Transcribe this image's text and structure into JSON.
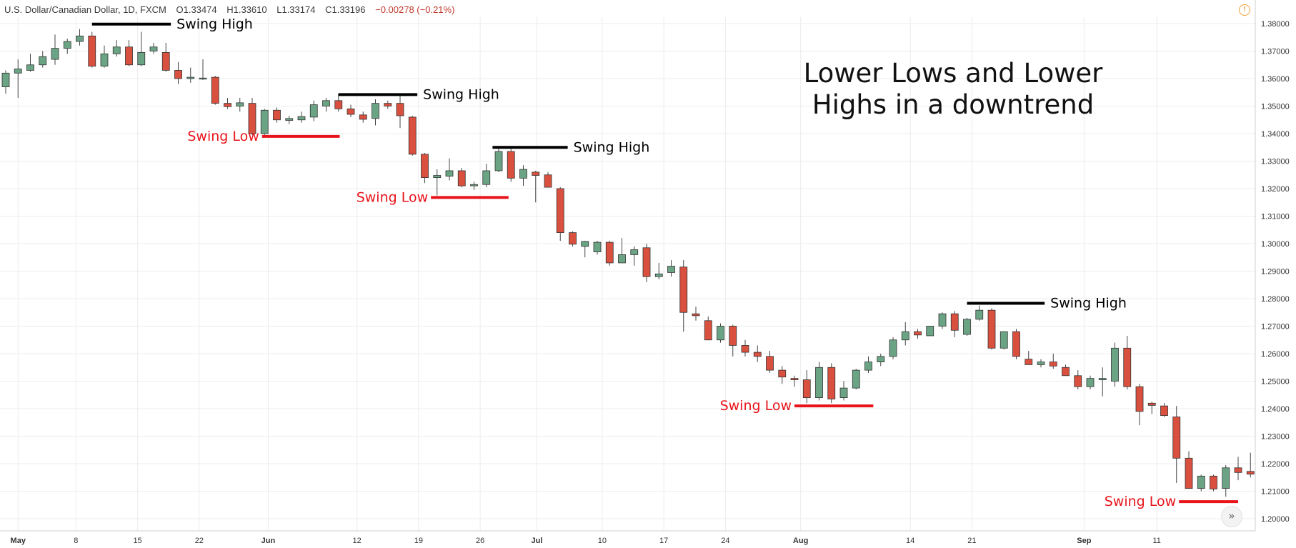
{
  "header": {
    "symbol": "U.S. Dollar/Canadian Dollar, 1D, FXCM",
    "open": "O1.33474",
    "high": "H1.33610",
    "low": "L1.33174",
    "close": "C1.33196",
    "change": "−0.00278 (−0.21%)"
  },
  "colors": {
    "up": "#6aa484",
    "down": "#d9503f",
    "swing_high": "#000000",
    "swing_low": "#e8141c",
    "grid": "#ececec"
  },
  "icons": {
    "warning": "exclamation-circle-icon",
    "scroll": "double-chevron-right-icon"
  },
  "chart_data": {
    "type": "candlestick",
    "title": "Lower Lows and Lower Highs in a downtrend",
    "title_lines": [
      "Lower Lows and Lower",
      "Highs in a downtrend"
    ],
    "ylim": [
      1.1965,
      1.3865
    ],
    "y_ticks": [
      "1.38000",
      "1.37000",
      "1.36000",
      "1.35000",
      "1.34000",
      "1.33000",
      "1.32000",
      "1.31000",
      "1.30000",
      "1.29000",
      "1.28000",
      "1.27000",
      "1.26000",
      "1.25000",
      "1.24000",
      "1.23000",
      "1.22000",
      "1.21000",
      "1.20000"
    ],
    "x_ticks": [
      {
        "label": "May",
        "i": 1,
        "bold": true
      },
      {
        "label": "8",
        "i": 5.7
      },
      {
        "label": "15",
        "i": 10.7
      },
      {
        "label": "22",
        "i": 15.7
      },
      {
        "label": "Jun",
        "i": 21.3,
        "bold": true
      },
      {
        "label": "12",
        "i": 28.5
      },
      {
        "label": "19",
        "i": 33.5
      },
      {
        "label": "26",
        "i": 38.5
      },
      {
        "label": "Jul",
        "i": 43.1,
        "bold": true
      },
      {
        "label": "10",
        "i": 48.4
      },
      {
        "label": "17",
        "i": 53.4
      },
      {
        "label": "24",
        "i": 58.4
      },
      {
        "label": "Aug",
        "i": 64.5,
        "bold": true
      },
      {
        "label": "14",
        "i": 73.4
      },
      {
        "label": "21",
        "i": 78.4
      },
      {
        "label": "Sep",
        "i": 87.5,
        "bold": true
      },
      {
        "label": "11",
        "i": 93.4
      }
    ],
    "candles": [
      {
        "o": 1.357,
        "h": 1.363,
        "l": 1.3545,
        "c": 1.362
      },
      {
        "o": 1.362,
        "h": 1.367,
        "l": 1.353,
        "c": 1.3635
      },
      {
        "o": 1.363,
        "h": 1.369,
        "l": 1.3625,
        "c": 1.365
      },
      {
        "o": 1.365,
        "h": 1.37,
        "l": 1.364,
        "c": 1.368
      },
      {
        "o": 1.367,
        "h": 1.376,
        "l": 1.365,
        "c": 1.371
      },
      {
        "o": 1.371,
        "h": 1.3745,
        "l": 1.369,
        "c": 1.3735
      },
      {
        "o": 1.3735,
        "h": 1.378,
        "l": 1.372,
        "c": 1.3755
      },
      {
        "o": 1.3755,
        "h": 1.377,
        "l": 1.364,
        "c": 1.3645
      },
      {
        "o": 1.3645,
        "h": 1.372,
        "l": 1.364,
        "c": 1.369
      },
      {
        "o": 1.369,
        "h": 1.374,
        "l": 1.368,
        "c": 1.3715
      },
      {
        "o": 1.3715,
        "h": 1.374,
        "l": 1.3645,
        "c": 1.365
      },
      {
        "o": 1.365,
        "h": 1.377,
        "l": 1.3645,
        "c": 1.3695
      },
      {
        "o": 1.37,
        "h": 1.373,
        "l": 1.369,
        "c": 1.3715
      },
      {
        "o": 1.3695,
        "h": 1.373,
        "l": 1.3625,
        "c": 1.363
      },
      {
        "o": 1.363,
        "h": 1.366,
        "l": 1.358,
        "c": 1.36
      },
      {
        "o": 1.36,
        "h": 1.364,
        "l": 1.3585,
        "c": 1.3605
      },
      {
        "o": 1.36,
        "h": 1.367,
        "l": 1.3595,
        "c": 1.3602
      },
      {
        "o": 1.3605,
        "h": 1.361,
        "l": 1.3505,
        "c": 1.351
      },
      {
        "o": 1.351,
        "h": 1.353,
        "l": 1.349,
        "c": 1.3498
      },
      {
        "o": 1.35,
        "h": 1.353,
        "l": 1.348,
        "c": 1.3512
      },
      {
        "o": 1.351,
        "h": 1.353,
        "l": 1.3395,
        "c": 1.34
      },
      {
        "o": 1.34,
        "h": 1.349,
        "l": 1.3395,
        "c": 1.3485
      },
      {
        "o": 1.3485,
        "h": 1.3495,
        "l": 1.344,
        "c": 1.345
      },
      {
        "o": 1.3448,
        "h": 1.3465,
        "l": 1.3435,
        "c": 1.3455
      },
      {
        "o": 1.345,
        "h": 1.348,
        "l": 1.344,
        "c": 1.3462
      },
      {
        "o": 1.346,
        "h": 1.352,
        "l": 1.3445,
        "c": 1.3505
      },
      {
        "o": 1.35,
        "h": 1.353,
        "l": 1.348,
        "c": 1.352
      },
      {
        "o": 1.352,
        "h": 1.3545,
        "l": 1.348,
        "c": 1.349
      },
      {
        "o": 1.349,
        "h": 1.3505,
        "l": 1.346,
        "c": 1.347
      },
      {
        "o": 1.3468,
        "h": 1.348,
        "l": 1.344,
        "c": 1.3452
      },
      {
        "o": 1.3455,
        "h": 1.3525,
        "l": 1.343,
        "c": 1.351
      },
      {
        "o": 1.351,
        "h": 1.352,
        "l": 1.349,
        "c": 1.35
      },
      {
        "o": 1.351,
        "h": 1.354,
        "l": 1.342,
        "c": 1.3465
      },
      {
        "o": 1.346,
        "h": 1.3465,
        "l": 1.332,
        "c": 1.3325
      },
      {
        "o": 1.3325,
        "h": 1.333,
        "l": 1.322,
        "c": 1.324
      },
      {
        "o": 1.324,
        "h": 1.327,
        "l": 1.3175,
        "c": 1.3248
      },
      {
        "o": 1.3245,
        "h": 1.331,
        "l": 1.323,
        "c": 1.3265
      },
      {
        "o": 1.3265,
        "h": 1.3275,
        "l": 1.3205,
        "c": 1.321
      },
      {
        "o": 1.321,
        "h": 1.3225,
        "l": 1.3195,
        "c": 1.3215
      },
      {
        "o": 1.3215,
        "h": 1.329,
        "l": 1.3205,
        "c": 1.3265
      },
      {
        "o": 1.3265,
        "h": 1.3345,
        "l": 1.326,
        "c": 1.3335
      },
      {
        "o": 1.3335,
        "h": 1.3345,
        "l": 1.3225,
        "c": 1.3238
      },
      {
        "o": 1.3238,
        "h": 1.3285,
        "l": 1.321,
        "c": 1.327
      },
      {
        "o": 1.326,
        "h": 1.3265,
        "l": 1.315,
        "c": 1.3248
      },
      {
        "o": 1.325,
        "h": 1.326,
        "l": 1.321,
        "c": 1.3205
      },
      {
        "o": 1.32,
        "h": 1.3205,
        "l": 1.301,
        "c": 1.304
      },
      {
        "o": 1.304,
        "h": 1.3045,
        "l": 1.299,
        "c": 1.2998
      },
      {
        "o": 1.299,
        "h": 1.301,
        "l": 1.295,
        "c": 1.3008
      },
      {
        "o": 1.297,
        "h": 1.301,
        "l": 1.296,
        "c": 1.3005
      },
      {
        "o": 1.3005,
        "h": 1.301,
        "l": 1.292,
        "c": 1.293
      },
      {
        "o": 1.293,
        "h": 1.302,
        "l": 1.293,
        "c": 1.296
      },
      {
        "o": 1.296,
        "h": 1.299,
        "l": 1.292,
        "c": 1.2978
      },
      {
        "o": 1.2985,
        "h": 1.3,
        "l": 1.286,
        "c": 1.288
      },
      {
        "o": 1.288,
        "h": 1.293,
        "l": 1.287,
        "c": 1.289
      },
      {
        "o": 1.2895,
        "h": 1.294,
        "l": 1.288,
        "c": 1.2918
      },
      {
        "o": 1.2915,
        "h": 1.294,
        "l": 1.268,
        "c": 1.275
      },
      {
        "o": 1.2745,
        "h": 1.277,
        "l": 1.272,
        "c": 1.2738
      },
      {
        "o": 1.272,
        "h": 1.2735,
        "l": 1.265,
        "c": 1.265
      },
      {
        "o": 1.265,
        "h": 1.271,
        "l": 1.264,
        "c": 1.27
      },
      {
        "o": 1.27,
        "h": 1.2705,
        "l": 1.259,
        "c": 1.263
      },
      {
        "o": 1.263,
        "h": 1.265,
        "l": 1.259,
        "c": 1.2605
      },
      {
        "o": 1.2605,
        "h": 1.263,
        "l": 1.257,
        "c": 1.259
      },
      {
        "o": 1.259,
        "h": 1.261,
        "l": 1.253,
        "c": 1.254
      },
      {
        "o": 1.254,
        "h": 1.2555,
        "l": 1.249,
        "c": 1.2515
      },
      {
        "o": 1.251,
        "h": 1.252,
        "l": 1.248,
        "c": 1.2505
      },
      {
        "o": 1.2505,
        "h": 1.254,
        "l": 1.242,
        "c": 1.244
      },
      {
        "o": 1.244,
        "h": 1.257,
        "l": 1.243,
        "c": 1.255
      },
      {
        "o": 1.255,
        "h": 1.2565,
        "l": 1.242,
        "c": 1.2435
      },
      {
        "o": 1.244,
        "h": 1.25,
        "l": 1.243,
        "c": 1.2475
      },
      {
        "o": 1.2475,
        "h": 1.2545,
        "l": 1.247,
        "c": 1.254
      },
      {
        "o": 1.254,
        "h": 1.259,
        "l": 1.253,
        "c": 1.257
      },
      {
        "o": 1.257,
        "h": 1.26,
        "l": 1.2555,
        "c": 1.259
      },
      {
        "o": 1.259,
        "h": 1.266,
        "l": 1.258,
        "c": 1.265
      },
      {
        "o": 1.265,
        "h": 1.2715,
        "l": 1.263,
        "c": 1.268
      },
      {
        "o": 1.268,
        "h": 1.269,
        "l": 1.2655,
        "c": 1.2668
      },
      {
        "o": 1.2665,
        "h": 1.27,
        "l": 1.2665,
        "c": 1.27
      },
      {
        "o": 1.27,
        "h": 1.275,
        "l": 1.269,
        "c": 1.2745
      },
      {
        "o": 1.2745,
        "h": 1.2755,
        "l": 1.266,
        "c": 1.2685
      },
      {
        "o": 1.267,
        "h": 1.273,
        "l": 1.2665,
        "c": 1.2725
      },
      {
        "o": 1.2725,
        "h": 1.2775,
        "l": 1.272,
        "c": 1.2758
      },
      {
        "o": 1.2758,
        "h": 1.2765,
        "l": 1.2615,
        "c": 1.262
      },
      {
        "o": 1.262,
        "h": 1.268,
        "l": 1.2615,
        "c": 1.268
      },
      {
        "o": 1.268,
        "h": 1.269,
        "l": 1.258,
        "c": 1.259
      },
      {
        "o": 1.258,
        "h": 1.261,
        "l": 1.256,
        "c": 1.256
      },
      {
        "o": 1.256,
        "h": 1.258,
        "l": 1.255,
        "c": 1.257
      },
      {
        "o": 1.257,
        "h": 1.26,
        "l": 1.2545,
        "c": 1.2555
      },
      {
        "o": 1.255,
        "h": 1.256,
        "l": 1.252,
        "c": 1.252
      },
      {
        "o": 1.252,
        "h": 1.254,
        "l": 1.247,
        "c": 1.248
      },
      {
        "o": 1.248,
        "h": 1.252,
        "l": 1.247,
        "c": 1.251
      },
      {
        "o": 1.2505,
        "h": 1.255,
        "l": 1.2445,
        "c": 1.251
      },
      {
        "o": 1.25,
        "h": 1.264,
        "l": 1.248,
        "c": 1.262
      },
      {
        "o": 1.262,
        "h": 1.2665,
        "l": 1.247,
        "c": 1.248
      },
      {
        "o": 1.248,
        "h": 1.249,
        "l": 1.234,
        "c": 1.239
      },
      {
        "o": 1.242,
        "h": 1.2425,
        "l": 1.238,
        "c": 1.2412
      },
      {
        "o": 1.241,
        "h": 1.242,
        "l": 1.237,
        "c": 1.2375
      },
      {
        "o": 1.237,
        "h": 1.241,
        "l": 1.213,
        "c": 1.222
      },
      {
        "o": 1.222,
        "h": 1.2245,
        "l": 1.211,
        "c": 1.211
      },
      {
        "o": 1.211,
        "h": 1.216,
        "l": 1.21,
        "c": 1.2155
      },
      {
        "o": 1.2155,
        "h": 1.216,
        "l": 1.21,
        "c": 1.2108
      },
      {
        "o": 1.211,
        "h": 1.2195,
        "l": 1.208,
        "c": 1.2185
      },
      {
        "o": 1.2185,
        "h": 1.2225,
        "l": 1.214,
        "c": 1.2168
      },
      {
        "o": 1.2172,
        "h": 1.224,
        "l": 1.215,
        "c": 1.2162
      }
    ],
    "swings": [
      {
        "type": "high",
        "label": "Swing High",
        "price": 1.3798,
        "from": 7,
        "to": 13.4
      },
      {
        "type": "low",
        "label": "Swing Low",
        "price": 1.339,
        "from": 20.8,
        "to": 27.1,
        "label_side": "left"
      },
      {
        "type": "high",
        "label": "Swing High",
        "price": 1.3542,
        "from": 27,
        "to": 33.4
      },
      {
        "type": "low",
        "label": "Swing Low",
        "price": 1.3168,
        "from": 34.5,
        "to": 40.8,
        "label_side": "left"
      },
      {
        "type": "high",
        "label": "Swing High",
        "price": 1.335,
        "from": 39.5,
        "to": 45.6
      },
      {
        "type": "low",
        "label": "Swing Low",
        "price": 1.241,
        "from": 64,
        "to": 70.4,
        "label_side": "left"
      },
      {
        "type": "high",
        "label": "Swing High",
        "price": 1.2783,
        "from": 78,
        "to": 84.3
      },
      {
        "type": "low",
        "label": "Swing Low",
        "price": 1.2062,
        "from": 95.2,
        "to": 100,
        "label_side": "left"
      }
    ]
  }
}
